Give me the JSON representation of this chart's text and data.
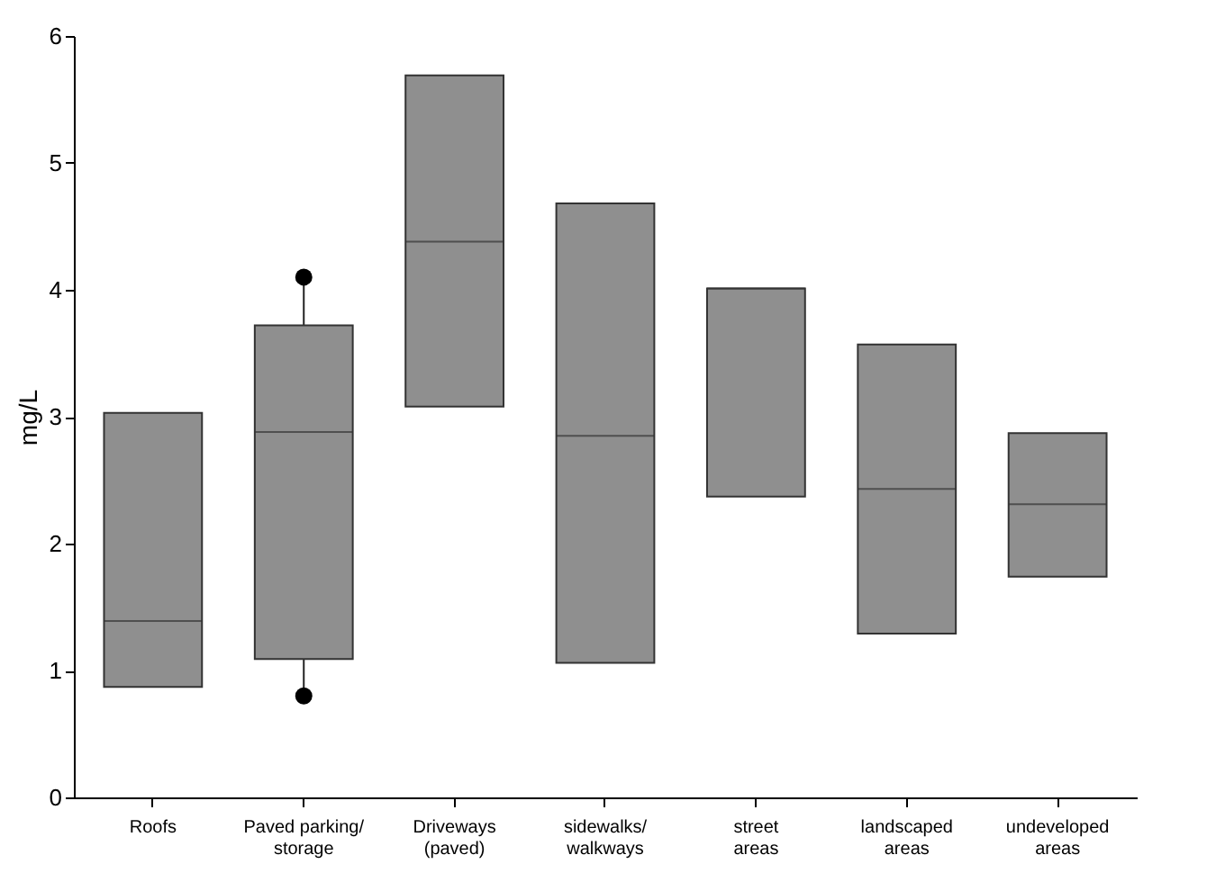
{
  "chart_data": {
    "type": "box",
    "ylabel": "mg/L",
    "categories": [
      "Roofs",
      "Paved parking/ storage",
      "Driveways (paved)",
      "sidewalks/ walkways",
      "street areas",
      "landscaped areas",
      "undeveloped areas"
    ],
    "boxes": [
      {
        "low": 0.87,
        "q1": 0.87,
        "median": 1.39,
        "q3": 3.03,
        "high": 3.03
      },
      {
        "low": 0.82,
        "q1": 1.09,
        "median": 2.88,
        "q3": 3.72,
        "high": 4.05,
        "outliers": [
          4.1,
          0.8
        ]
      },
      {
        "low": 3.08,
        "q1": 3.08,
        "median": 4.38,
        "q3": 5.69,
        "high": 5.69
      },
      {
        "low": 1.06,
        "q1": 1.06,
        "median": 2.85,
        "q3": 4.68,
        "high": 4.68
      },
      {
        "low": 2.37,
        "q1": 2.37,
        "median": 4.01,
        "q3": 4.01,
        "high": 4.01
      },
      {
        "low": 1.29,
        "q1": 1.29,
        "median": 2.43,
        "q3": 3.57,
        "high": 3.57
      },
      {
        "low": 1.74,
        "q1": 1.74,
        "median": 2.31,
        "q3": 2.87,
        "high": 2.87
      }
    ],
    "color": "#8f8f8f",
    "ylim": [
      0,
      6
    ],
    "yticks": [
      0,
      1,
      2,
      3,
      4,
      5,
      6
    ],
    "grid": false
  }
}
